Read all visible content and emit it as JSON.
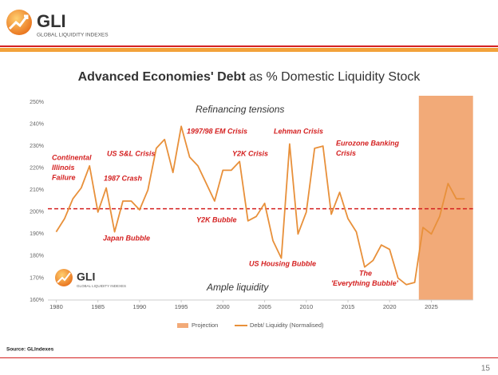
{
  "header": {
    "logo": "GLI",
    "tagline": "GLOBAL LIQUIDITY INDEXES"
  },
  "chart_data": {
    "type": "line",
    "title_bold": "Advanced Economies' Debt",
    "title_rest": "as % Domestic Liquidity Stock",
    "x": [
      1980,
      1981,
      1982,
      1983,
      1984,
      1985,
      1986,
      1987,
      1988,
      1989,
      1990,
      1991,
      1992,
      1993,
      1994,
      1995,
      1996,
      1997,
      1998,
      1999,
      2000,
      2001,
      2002,
      2003,
      2004,
      2005,
      2006,
      2007,
      2008,
      2009,
      2010,
      2011,
      2012,
      2013,
      2014,
      2015,
      2016,
      2017,
      2018,
      2019,
      2020,
      2021,
      2022,
      2023,
      2024,
      2025,
      2026,
      2027,
      2028,
      2029
    ],
    "series": [
      {
        "name": "Debt/ Liquidity (Normalised)",
        "color": "#e8903a",
        "values": [
          191,
          197,
          206,
          211,
          221,
          200,
          211,
          191,
          205,
          205,
          201,
          210,
          229,
          233,
          218,
          239,
          225,
          221,
          213,
          205,
          219,
          219,
          223,
          196,
          198,
          204,
          187,
          179,
          231,
          190,
          200,
          229,
          230,
          199,
          209,
          197,
          191,
          175,
          178,
          185,
          183,
          170,
          167,
          168,
          193,
          190,
          198,
          213,
          206,
          206
        ]
      }
    ],
    "projection": {
      "name": "Projection",
      "start": 2023.5,
      "color": "#f2aa78"
    },
    "threshold": {
      "value": 201.5,
      "color": "#d42020"
    },
    "xlim": [
      1979,
      2030
    ],
    "xticks": [
      1980,
      1985,
      1990,
      1995,
      2000,
      2005,
      2010,
      2015,
      2020,
      2025
    ],
    "ylim": [
      160,
      250
    ],
    "yticks": [
      {
        "value": 160,
        "label": "160%"
      },
      {
        "value": 170,
        "label": "170%"
      },
      {
        "value": 180,
        "label": "180%"
      },
      {
        "value": 190,
        "label": "190%"
      },
      {
        "value": 200,
        "label": "200%"
      },
      {
        "value": 210,
        "label": "210%"
      },
      {
        "value": 220,
        "label": "220%"
      },
      {
        "value": 230,
        "label": "230%"
      },
      {
        "value": 240,
        "label": "240%"
      },
      {
        "value": 250,
        "label": "250%"
      }
    ],
    "annotations": [
      [
        "Refinancing tensions"
      ],
      [
        "1997/98 EM Crisis"
      ],
      [
        "Lehman Crisis"
      ],
      [
        "Eurozone Banking",
        "Crisis"
      ],
      [
        "Y2K Crisis"
      ],
      [
        "US S&L Crisis"
      ],
      [
        "Continental",
        "Illinois",
        "Failure"
      ],
      [
        "1987 Crash"
      ],
      [
        "Y2K Bubble"
      ],
      [
        "Japan Bubble"
      ],
      [
        "US Housing Bubble"
      ],
      [
        "The",
        "'Everything Bubble'"
      ],
      [
        "Ample liquidity"
      ]
    ],
    "watermark": {
      "logo": "GLI",
      "tagline": "GLOBAL LIQUIDITY INDEXES"
    }
  },
  "footer": {
    "source": "Source: GLIndexes",
    "page": "15"
  }
}
